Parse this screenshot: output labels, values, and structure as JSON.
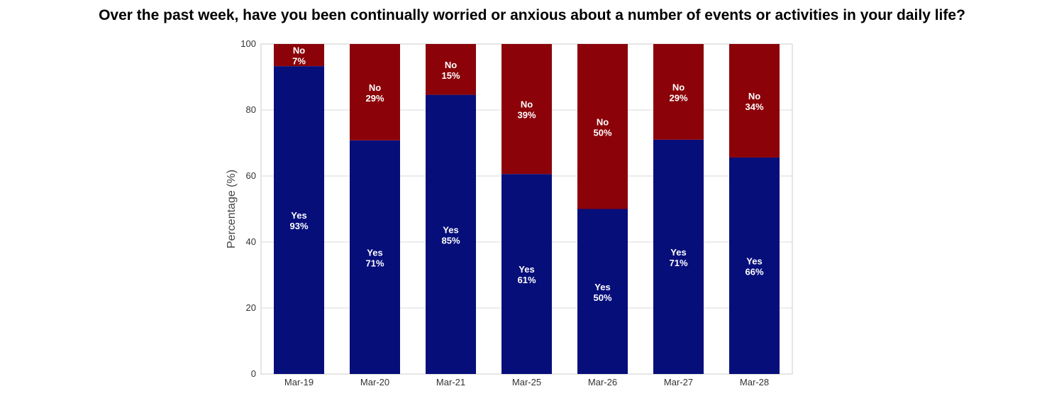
{
  "chart_data": {
    "type": "bar",
    "stacked": true,
    "title": "Over the past week, have you been continually worried or anxious about a number of events or activities in your daily life?",
    "xlabel": "",
    "ylabel": "Percentage (%)",
    "ylim": [
      0,
      100
    ],
    "yticks": [
      "0",
      "20",
      "40",
      "60",
      "80",
      "100"
    ],
    "grid": true,
    "categories": [
      "Mar-19",
      "Mar-20",
      "Mar-21",
      "Mar-25",
      "Mar-26",
      "Mar-27",
      "Mar-28"
    ],
    "series": [
      {
        "name": "Yes",
        "color": "#060e7a",
        "values": [
          93.3,
          70.8,
          84.6,
          60.6,
          50.0,
          71.0,
          65.6
        ],
        "labels": [
          "93%",
          "71%",
          "85%",
          "61%",
          "50%",
          "71%",
          "66%"
        ]
      },
      {
        "name": "No",
        "color": "#8b0309",
        "values": [
          6.7,
          29.2,
          15.4,
          39.4,
          50.0,
          29.0,
          34.4
        ],
        "labels": [
          "7%",
          "29%",
          "15%",
          "39%",
          "50%",
          "29%",
          "34%"
        ]
      }
    ]
  }
}
